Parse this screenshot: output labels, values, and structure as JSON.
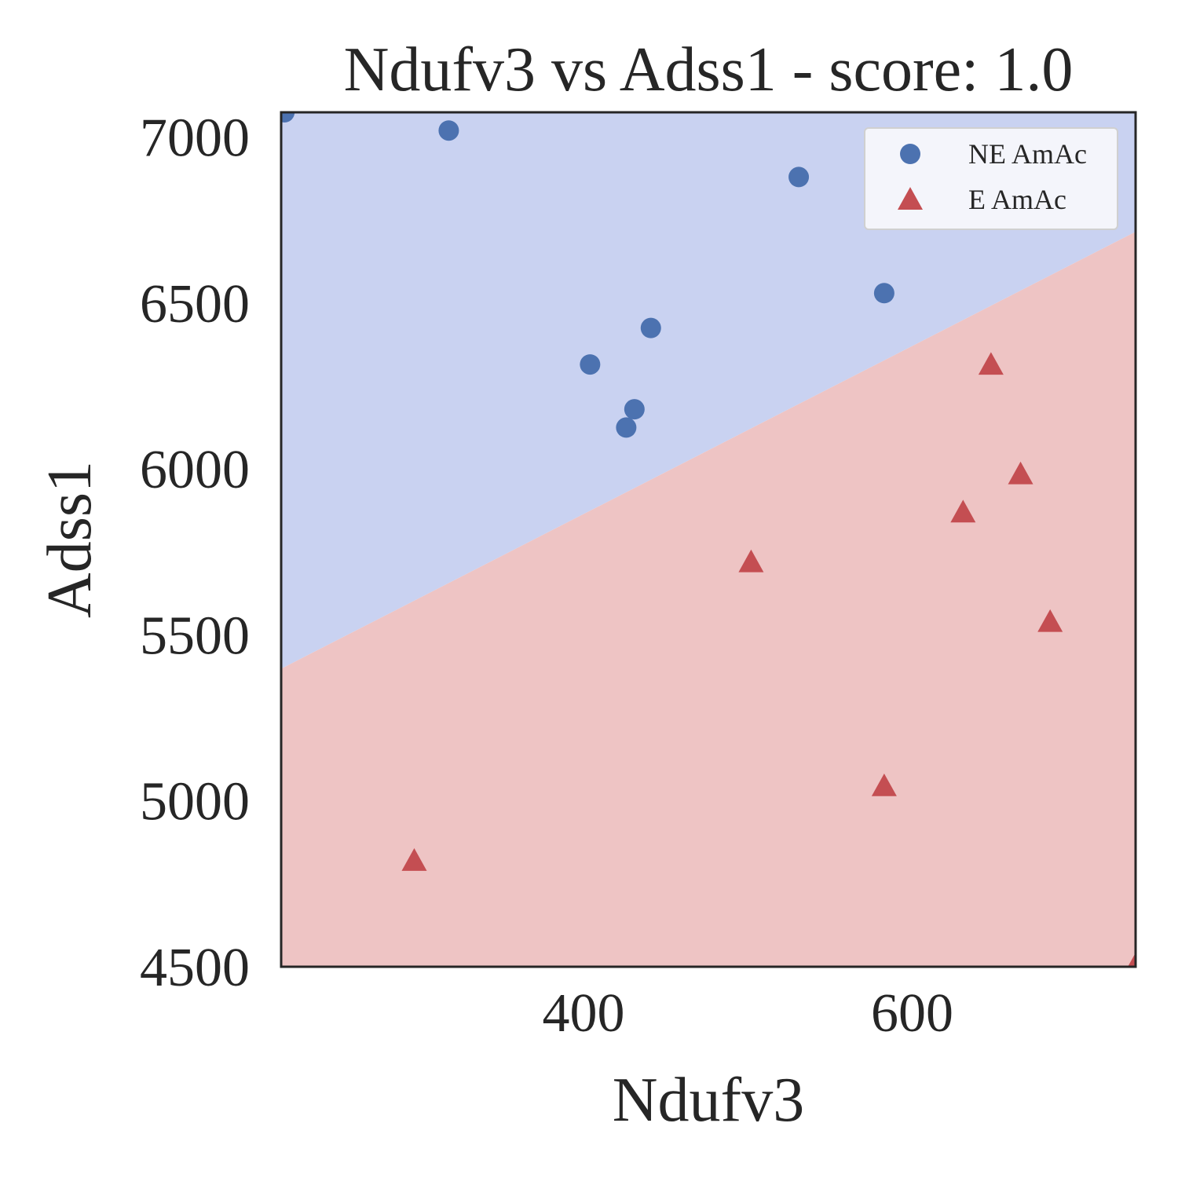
{
  "chart_data": {
    "type": "scatter",
    "title": "Ndufv3 vs Adss1 - score: 1.0",
    "xlabel": "Ndufv3",
    "ylabel": "Adss1",
    "xlim": [
      216,
      736
    ],
    "ylim": [
      4500,
      7075
    ],
    "xticks": [
      400,
      600
    ],
    "yticks": [
      4500,
      5000,
      5500,
      6000,
      6500,
      7000
    ],
    "grid": false,
    "legend_position": "top-right",
    "decision_boundary": {
      "points": [
        [
          216,
          5398
        ],
        [
          736,
          6715
        ]
      ],
      "upper_region_color": "#c9d2f1",
      "lower_region_color": "#eec4c4"
    },
    "series": [
      {
        "name": "NE AmAc",
        "marker": "circle",
        "color": "#4c72b0",
        "points": [
          [
            218,
            7075
          ],
          [
            318,
            7020
          ],
          [
            531,
            6880
          ],
          [
            404,
            6315
          ],
          [
            441,
            6425
          ],
          [
            583,
            6530
          ],
          [
            431,
            6180
          ],
          [
            426,
            6125
          ]
        ]
      },
      {
        "name": "E AmAc",
        "marker": "triangle",
        "color": "#c44e52",
        "points": [
          [
            648,
            6310
          ],
          [
            666,
            5980
          ],
          [
            631,
            5865
          ],
          [
            502,
            5715
          ],
          [
            684,
            5535
          ],
          [
            583,
            5040
          ],
          [
            297,
            4815
          ],
          [
            736,
            4500
          ]
        ]
      }
    ]
  }
}
